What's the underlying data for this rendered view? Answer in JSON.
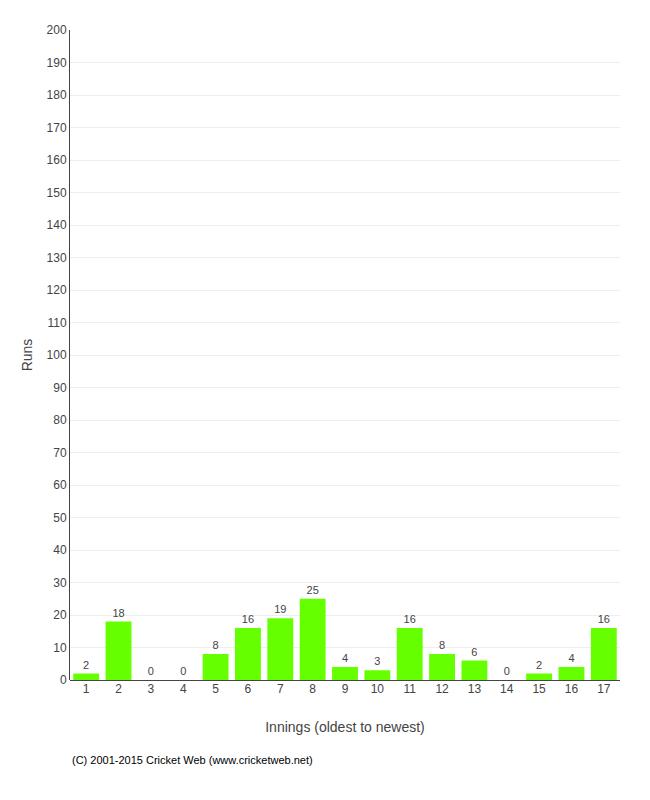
{
  "chart_data": {
    "type": "bar",
    "xlabel": "Innings (oldest to newest)",
    "ylabel": "Runs",
    "categories": [
      "1",
      "2",
      "3",
      "4",
      "5",
      "6",
      "7",
      "8",
      "9",
      "10",
      "11",
      "12",
      "13",
      "14",
      "15",
      "16",
      "17"
    ],
    "values": [
      2,
      18,
      0,
      0,
      8,
      16,
      19,
      25,
      4,
      3,
      16,
      8,
      6,
      0,
      2,
      4,
      16
    ],
    "color": "#66ff00",
    "ylim": [
      0,
      200
    ],
    "yticks": [
      0,
      10,
      20,
      30,
      40,
      50,
      60,
      70,
      80,
      90,
      100,
      110,
      120,
      130,
      140,
      150,
      160,
      170,
      180,
      190,
      200
    ],
    "grid": true,
    "data_labels": true,
    "annotations": [
      "(C) 2001-2015 Cricket Web (www.cricketweb.net)"
    ]
  }
}
